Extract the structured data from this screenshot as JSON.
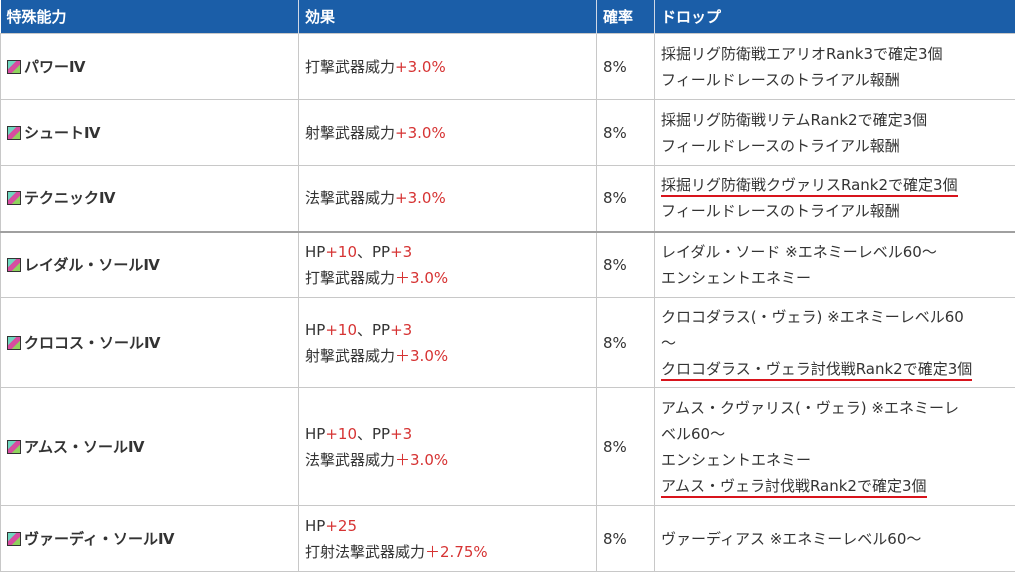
{
  "headers": [
    "特殊能力",
    "効果",
    "確率",
    "ドロップ"
  ],
  "rows": [
    {
      "name": "パワーⅣ",
      "effect_lines": [
        [
          {
            "t": "打撃武器威力"
          },
          {
            "t": "+3.0%",
            "hl": true
          }
        ]
      ],
      "rate": "8%",
      "drop_lines": [
        {
          "t": "採掘リグ防衛戦エアリオRank3で確定3個"
        },
        {
          "t": "フィールドレースのトライアル報酬"
        }
      ]
    },
    {
      "name": "シュートⅣ",
      "effect_lines": [
        [
          {
            "t": "射撃武器威力"
          },
          {
            "t": "+3.0%",
            "hl": true
          }
        ]
      ],
      "rate": "8%",
      "drop_lines": [
        {
          "t": "採掘リグ防衛戦リテムRank2で確定3個"
        },
        {
          "t": "フィールドレースのトライアル報酬"
        }
      ]
    },
    {
      "name": "テクニックⅣ",
      "effect_lines": [
        [
          {
            "t": "法撃武器威力"
          },
          {
            "t": "+3.0%",
            "hl": true
          }
        ]
      ],
      "rate": "8%",
      "drop_lines": [
        {
          "t": "採掘リグ防衛戦クヴァリスRank2で確定3個",
          "ul": true
        },
        {
          "t": "フィールドレースのトライアル報酬"
        }
      ]
    },
    {
      "name": "レイダル・ソールⅣ",
      "effect_lines": [
        [
          {
            "t": "HP"
          },
          {
            "t": "+10",
            "hl": true
          },
          {
            "t": "、PP"
          },
          {
            "t": "+3",
            "hl": true
          }
        ],
        [
          {
            "t": "打撃武器威力"
          },
          {
            "t": "＋3.0%",
            "hl": true
          }
        ]
      ],
      "rate": "8%",
      "drop_lines": [
        {
          "t": "レイダル・ソード ※エネミーレベル60～"
        },
        {
          "t": "エンシェントエネミー"
        }
      ],
      "sep": true
    },
    {
      "name": "クロコス・ソールⅣ",
      "effect_lines": [
        [
          {
            "t": "HP"
          },
          {
            "t": "+10",
            "hl": true
          },
          {
            "t": "、PP"
          },
          {
            "t": "+3",
            "hl": true
          }
        ],
        [
          {
            "t": "射撃武器威力"
          },
          {
            "t": "＋3.0%",
            "hl": true
          }
        ]
      ],
      "rate": "8%",
      "drop_lines": [
        {
          "t": "クロコダラス(・ヴェラ) ※エネミーレベル60"
        },
        {
          "t": "～"
        },
        {
          "t": "クロコダラス・ヴェラ討伐戦Rank2で確定3個",
          "ul": true
        }
      ]
    },
    {
      "name": "アムス・ソールⅣ",
      "effect_lines": [
        [
          {
            "t": "HP"
          },
          {
            "t": "+10",
            "hl": true
          },
          {
            "t": "、PP"
          },
          {
            "t": "+3",
            "hl": true
          }
        ],
        [
          {
            "t": "法撃武器威力"
          },
          {
            "t": "＋3.0%",
            "hl": true
          }
        ]
      ],
      "rate": "8%",
      "drop_lines": [
        {
          "t": "アムス・クヴァリス(・ヴェラ) ※エネミーレ"
        },
        {
          "t": "ベル60～"
        },
        {
          "t": "エンシェントエネミー"
        },
        {
          "t": "アムス・ヴェラ討伐戦Rank2で確定3個",
          "ul": true
        }
      ]
    },
    {
      "name": "ヴァーディ・ソールⅣ",
      "effect_lines": [
        [
          {
            "t": "HP"
          },
          {
            "t": "+25",
            "hl": true
          }
        ],
        [
          {
            "t": "打射法撃武器威力"
          },
          {
            "t": "＋2.75%",
            "hl": true
          }
        ]
      ],
      "rate": "8%",
      "drop_lines": [
        {
          "t": "ヴァーディアス ※エネミーレベル60～"
        }
      ]
    }
  ]
}
